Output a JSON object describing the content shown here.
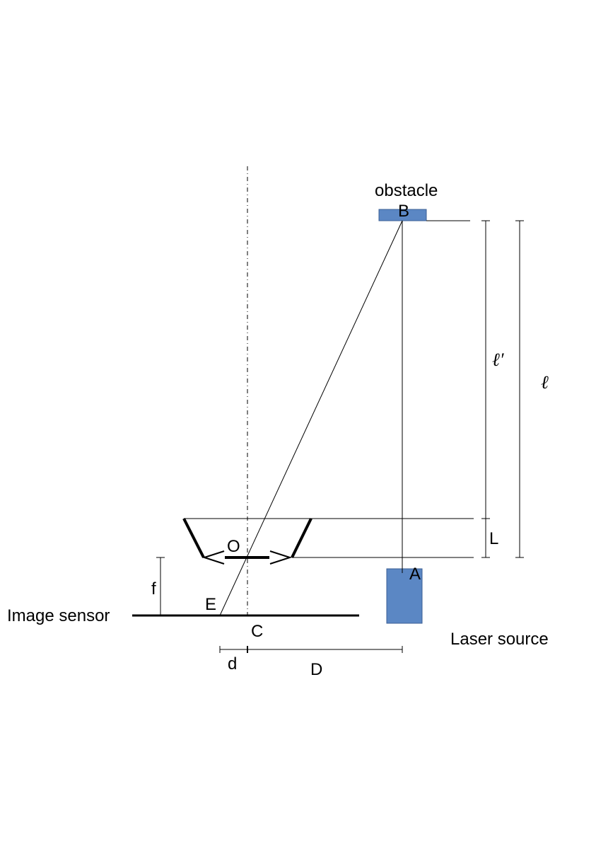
{
  "labels": {
    "obstacle": "obstacle",
    "point_b": "B",
    "point_a": "A",
    "point_o": "O",
    "point_e": "E",
    "point_c": "C",
    "l_prime": "ℓ′",
    "l": "ℓ",
    "L": "L",
    "f": "f",
    "d": "d",
    "D": "D",
    "image_sensor": "Image sensor",
    "laser_source": "Laser source"
  },
  "colors": {
    "block_fill": "#5b87c4",
    "block_stroke": "#3b5f94",
    "line": "#000000"
  }
}
